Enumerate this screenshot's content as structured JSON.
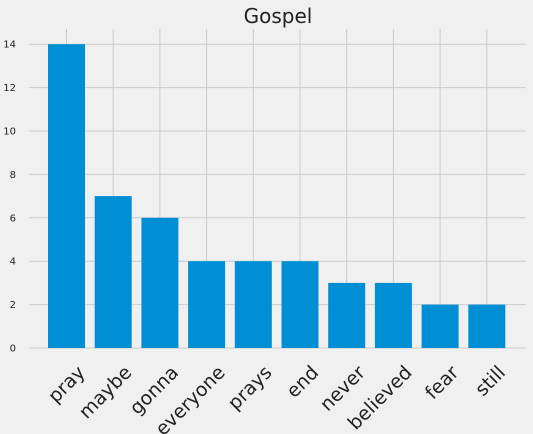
{
  "chart_data": {
    "type": "bar",
    "title": "Gospel",
    "xlabel": "",
    "ylabel": "",
    "categories": [
      "pray",
      "maybe",
      "gonna",
      "everyone",
      "prays",
      "end",
      "never",
      "believed",
      "fear",
      "still"
    ],
    "values": [
      14,
      7,
      6,
      4,
      4,
      4,
      3,
      3,
      2,
      2
    ],
    "ylim": [
      0,
      14.7
    ],
    "yticks": [
      0,
      2,
      4,
      6,
      8,
      10,
      12,
      14
    ],
    "grid": true,
    "colors": {
      "bar": "#008fd5",
      "background": "#f0f0f0",
      "grid": "#cbcbcb"
    }
  }
}
